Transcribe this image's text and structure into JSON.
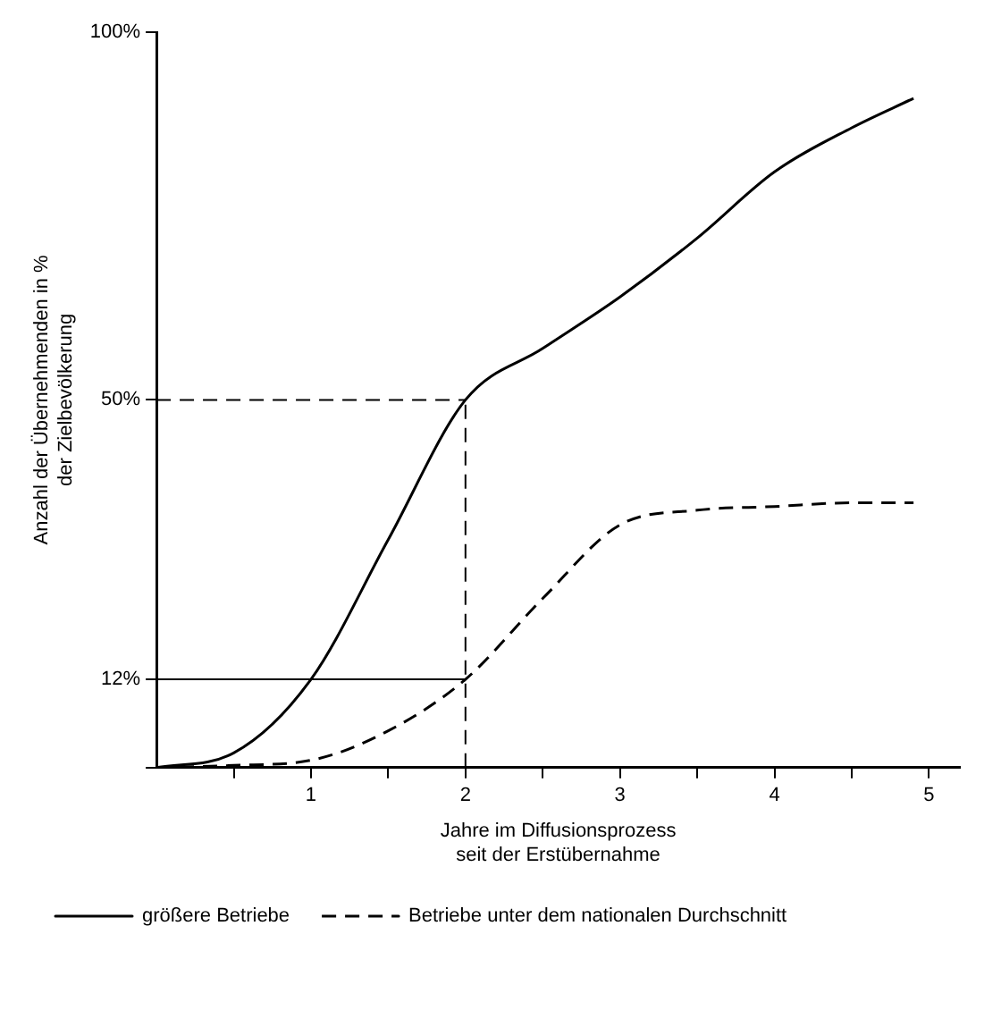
{
  "chart_data": {
    "type": "line",
    "xlabel": "Jahre im Diffusionsprozess\nseit der Erstübernahme",
    "ylabel": "Anzahl der Übernehmenden in %\nder Zielbevölkerung",
    "xlim": [
      0,
      5.2
    ],
    "xticks": [
      {
        "value": 0.5,
        "label": null
      },
      1,
      {
        "value": 1.5,
        "label": null
      },
      2,
      {
        "value": 2.5,
        "label": null
      },
      3,
      {
        "value": 3.5,
        "label": null
      },
      4,
      {
        "value": 4.5,
        "label": null
      },
      5
    ],
    "ylim": [
      0,
      100
    ],
    "yticks": [
      {
        "value": 0,
        "label": null
      },
      {
        "value": 12,
        "label": "12%"
      },
      {
        "value": 50,
        "label": "50%"
      },
      {
        "value": 100,
        "label": "100%"
      }
    ],
    "ref_lines": [
      {
        "axis": "y",
        "value": 50,
        "line_style": "dashed"
      },
      {
        "axis": "y",
        "value": 12,
        "line_style": "solid"
      },
      {
        "axis": "x",
        "value": 2,
        "line_style": "dashed"
      }
    ],
    "grid": false,
    "legend": "bottom",
    "marker": "none",
    "series": [
      {
        "name": "größere Betriebe",
        "color": "#000000",
        "line_style": "solid",
        "x": [
          0,
          0.5,
          1,
          1.5,
          2,
          2.5,
          3,
          3.5,
          4,
          4.5,
          4.9
        ],
        "values": [
          0,
          2,
          12,
          31,
          50,
          57,
          64,
          72,
          81,
          87,
          91
        ]
      },
      {
        "name": "Betriebe unter dem nationalen Durchschnitt",
        "color": "#000000",
        "line_style": "dashed",
        "x": [
          0,
          0.5,
          1,
          1.5,
          2,
          2.5,
          3,
          3.5,
          4,
          4.5,
          4.9
        ],
        "values": [
          0,
          0.3,
          1,
          5,
          12,
          23,
          33,
          35,
          35.5,
          36,
          36
        ]
      }
    ]
  }
}
